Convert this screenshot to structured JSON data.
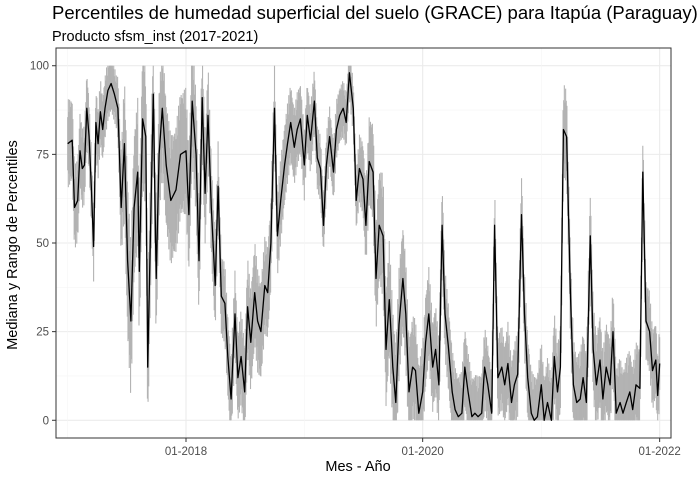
{
  "chart_data": {
    "type": "area",
    "title": "Percentiles de humedad superficial del suelo (GRACE) para Itapúa (Paraguay)",
    "subtitle": "Producto sfsm_inst (2017-2021)",
    "xlabel": "Mes - Año",
    "ylabel": "Mediana y Rango de Percentiles",
    "x_ticks": [
      "01-2018",
      "01-2020",
      "01-2022"
    ],
    "y_ticks": [
      0,
      25,
      50,
      75,
      100
    ],
    "xlim": [
      "2016-11-26",
      "2022-02-05"
    ],
    "ylim": [
      -5,
      105
    ],
    "grid": true,
    "series": [
      {
        "role": "median",
        "color": "#000000",
        "points": [
          [
            "2017-01-01",
            78
          ],
          [
            "2017-01-15",
            79
          ],
          [
            "2017-01-22",
            60
          ],
          [
            "2017-02-01",
            62
          ],
          [
            "2017-02-08",
            76
          ],
          [
            "2017-02-15",
            71
          ],
          [
            "2017-02-22",
            72
          ],
          [
            "2017-03-01",
            88
          ],
          [
            "2017-03-08",
            80
          ],
          [
            "2017-03-15",
            66
          ],
          [
            "2017-03-22",
            49
          ],
          [
            "2017-03-29",
            84
          ],
          [
            "2017-04-05",
            78
          ],
          [
            "2017-04-12",
            87
          ],
          [
            "2017-04-19",
            82
          ],
          [
            "2017-04-26",
            88
          ],
          [
            "2017-05-05",
            93
          ],
          [
            "2017-05-15",
            95
          ],
          [
            "2017-05-25",
            92
          ],
          [
            "2017-06-05",
            88
          ],
          [
            "2017-06-15",
            60
          ],
          [
            "2017-06-25",
            78
          ],
          [
            "2017-07-05",
            45
          ],
          [
            "2017-07-15",
            28
          ],
          [
            "2017-07-25",
            60
          ],
          [
            "2017-08-05",
            70
          ],
          [
            "2017-08-10",
            42
          ],
          [
            "2017-08-20",
            85
          ],
          [
            "2017-08-30",
            80
          ],
          [
            "2017-09-05",
            15
          ],
          [
            "2017-09-15",
            60
          ],
          [
            "2017-09-22",
            92
          ],
          [
            "2017-10-01",
            40
          ],
          [
            "2017-10-10",
            75
          ],
          [
            "2017-10-20",
            88
          ],
          [
            "2017-11-01",
            72
          ],
          [
            "2017-11-15",
            62
          ],
          [
            "2017-12-01",
            65
          ],
          [
            "2017-12-15",
            75
          ],
          [
            "2018-01-01",
            76
          ],
          [
            "2018-01-10",
            58
          ],
          [
            "2018-01-20",
            90
          ],
          [
            "2018-02-01",
            75
          ],
          [
            "2018-02-10",
            45
          ],
          [
            "2018-02-20",
            91
          ],
          [
            "2018-03-01",
            64
          ],
          [
            "2018-03-10",
            86
          ],
          [
            "2018-03-20",
            60
          ],
          [
            "2018-04-01",
            38
          ],
          [
            "2018-04-10",
            66
          ],
          [
            "2018-04-20",
            35
          ],
          [
            "2018-05-01",
            33
          ],
          [
            "2018-05-10",
            18
          ],
          [
            "2018-05-20",
            6
          ],
          [
            "2018-06-01",
            30
          ],
          [
            "2018-06-10",
            12
          ],
          [
            "2018-06-20",
            18
          ],
          [
            "2018-07-01",
            8
          ],
          [
            "2018-07-10",
            32
          ],
          [
            "2018-07-20",
            22
          ],
          [
            "2018-08-01",
            36
          ],
          [
            "2018-08-10",
            28
          ],
          [
            "2018-08-20",
            25
          ],
          [
            "2018-09-01",
            38
          ],
          [
            "2018-09-10",
            36
          ],
          [
            "2018-09-20",
            50
          ],
          [
            "2018-10-01",
            88
          ],
          [
            "2018-10-10",
            52
          ],
          [
            "2018-10-20",
            62
          ],
          [
            "2018-11-01",
            72
          ],
          [
            "2018-11-10",
            78
          ],
          [
            "2018-11-20",
            84
          ],
          [
            "2018-12-01",
            77
          ],
          [
            "2018-12-10",
            82
          ],
          [
            "2018-12-20",
            85
          ],
          [
            "2019-01-01",
            72
          ],
          [
            "2019-01-10",
            86
          ],
          [
            "2019-01-20",
            79
          ],
          [
            "2019-02-01",
            90
          ],
          [
            "2019-02-10",
            74
          ],
          [
            "2019-02-20",
            71
          ],
          [
            "2019-03-01",
            55
          ],
          [
            "2019-03-10",
            72
          ],
          [
            "2019-03-20",
            80
          ],
          [
            "2019-04-01",
            70
          ],
          [
            "2019-04-10",
            82
          ],
          [
            "2019-04-20",
            86
          ],
          [
            "2019-05-01",
            88
          ],
          [
            "2019-05-10",
            84
          ],
          [
            "2019-05-20",
            98
          ],
          [
            "2019-06-01",
            88
          ],
          [
            "2019-06-10",
            62
          ],
          [
            "2019-06-20",
            71
          ],
          [
            "2019-07-01",
            68
          ],
          [
            "2019-07-10",
            55
          ],
          [
            "2019-07-20",
            73
          ],
          [
            "2019-08-01",
            70
          ],
          [
            "2019-08-10",
            40
          ],
          [
            "2019-08-20",
            55
          ],
          [
            "2019-09-01",
            52
          ],
          [
            "2019-09-10",
            20
          ],
          [
            "2019-09-20",
            34
          ],
          [
            "2019-10-01",
            15
          ],
          [
            "2019-10-10",
            5
          ],
          [
            "2019-10-20",
            27
          ],
          [
            "2019-11-01",
            40
          ],
          [
            "2019-11-10",
            30
          ],
          [
            "2019-11-20",
            8
          ],
          [
            "2019-12-01",
            15
          ],
          [
            "2019-12-10",
            14
          ],
          [
            "2019-12-20",
            2
          ],
          [
            "2020-01-01",
            8
          ],
          [
            "2020-01-10",
            22
          ],
          [
            "2020-01-20",
            30
          ],
          [
            "2020-02-01",
            15
          ],
          [
            "2020-02-10",
            20
          ],
          [
            "2020-02-20",
            10
          ],
          [
            "2020-03-01",
            55
          ],
          [
            "2020-03-10",
            30
          ],
          [
            "2020-03-20",
            21
          ],
          [
            "2020-04-01",
            8
          ],
          [
            "2020-04-10",
            3
          ],
          [
            "2020-04-20",
            1
          ],
          [
            "2020-05-01",
            2
          ],
          [
            "2020-05-10",
            15
          ],
          [
            "2020-05-20",
            8
          ],
          [
            "2020-06-01",
            1
          ],
          [
            "2020-06-10",
            2
          ],
          [
            "2020-06-20",
            1
          ],
          [
            "2020-07-01",
            2
          ],
          [
            "2020-07-10",
            15
          ],
          [
            "2020-07-20",
            10
          ],
          [
            "2020-08-01",
            2
          ],
          [
            "2020-08-10",
            55
          ],
          [
            "2020-08-20",
            12
          ],
          [
            "2020-09-01",
            15
          ],
          [
            "2020-09-10",
            10
          ],
          [
            "2020-09-20",
            16
          ],
          [
            "2020-10-01",
            5
          ],
          [
            "2020-10-10",
            10
          ],
          [
            "2020-10-20",
            13
          ],
          [
            "2020-11-01",
            58
          ],
          [
            "2020-11-10",
            30
          ],
          [
            "2020-11-20",
            12
          ],
          [
            "2020-12-01",
            2
          ],
          [
            "2020-12-10",
            0
          ],
          [
            "2020-12-20",
            1
          ],
          [
            "2021-01-01",
            10
          ],
          [
            "2021-01-10",
            0
          ],
          [
            "2021-01-20",
            5
          ],
          [
            "2021-02-01",
            0
          ],
          [
            "2021-02-10",
            18
          ],
          [
            "2021-02-20",
            8
          ],
          [
            "2021-03-01",
            15
          ],
          [
            "2021-03-10",
            82
          ],
          [
            "2021-03-20",
            80
          ],
          [
            "2021-04-01",
            35
          ],
          [
            "2021-04-10",
            10
          ],
          [
            "2021-04-20",
            5
          ],
          [
            "2021-05-01",
            6
          ],
          [
            "2021-05-10",
            12
          ],
          [
            "2021-05-20",
            5
          ],
          [
            "2021-06-01",
            52
          ],
          [
            "2021-06-10",
            20
          ],
          [
            "2021-06-20",
            10
          ],
          [
            "2021-07-01",
            17
          ],
          [
            "2021-07-10",
            6
          ],
          [
            "2021-07-20",
            15
          ],
          [
            "2021-08-01",
            10
          ],
          [
            "2021-08-10",
            25
          ],
          [
            "2021-08-20",
            2
          ],
          [
            "2021-09-01",
            5
          ],
          [
            "2021-09-10",
            2
          ],
          [
            "2021-09-20",
            5
          ],
          [
            "2021-10-01",
            8
          ],
          [
            "2021-10-10",
            3
          ],
          [
            "2021-10-20",
            10
          ],
          [
            "2021-11-01",
            9
          ],
          [
            "2021-11-10",
            70
          ],
          [
            "2021-11-20",
            28
          ],
          [
            "2021-12-01",
            25
          ],
          [
            "2021-12-10",
            14
          ],
          [
            "2021-12-20",
            17
          ],
          [
            "2021-12-26",
            7
          ],
          [
            "2022-01-01",
            16
          ]
        ]
      },
      {
        "role": "percentile-range",
        "color": "#b3b3b3",
        "half_width": [
          [
            "2017-01-01",
            10
          ],
          [
            "2017-04-01",
            8
          ],
          [
            "2017-06-01",
            6
          ],
          [
            "2017-07-01",
            18
          ],
          [
            "2017-10-01",
            15
          ],
          [
            "2018-02-01",
            14
          ],
          [
            "2018-05-01",
            9
          ],
          [
            "2018-08-01",
            12
          ],
          [
            "2018-10-01",
            10
          ],
          [
            "2019-01-01",
            8
          ],
          [
            "2019-06-01",
            6
          ],
          [
            "2019-09-01",
            14
          ],
          [
            "2020-01-01",
            11
          ],
          [
            "2020-06-01",
            9
          ],
          [
            "2021-01-01",
            10
          ],
          [
            "2021-06-01",
            11
          ],
          [
            "2022-01-01",
            9
          ]
        ]
      }
    ]
  }
}
